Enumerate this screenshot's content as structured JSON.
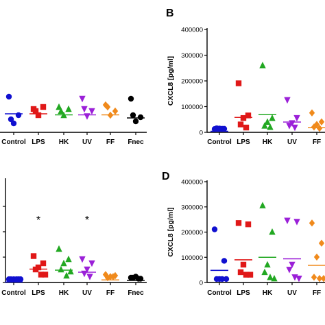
{
  "chart_data": [
    {
      "panel": "",
      "type": "scatter",
      "categories": [
        "Control",
        "LPS",
        "HK",
        "UV",
        "FF",
        "Fnec"
      ],
      "colors": [
        "#1010d0",
        "#e01818",
        "#22a822",
        "#9b20d8",
        "#f08a1c",
        "#000000"
      ],
      "markers": [
        "circle",
        "square",
        "triangle",
        "triangle-down",
        "diamond",
        "circle"
      ],
      "ylabel": "",
      "yticks": [],
      "points": [
        [
          0.32,
          0.14,
          0.06,
          0.1
        ],
        [
          0.2,
          0.22,
          0.14,
          0.18
        ],
        [
          0.22,
          0.2,
          0.14,
          0.18
        ],
        [
          0.3,
          0.18,
          0.13,
          0.2
        ],
        [
          0.24,
          0.18,
          0.14,
          0.22
        ],
        [
          0.3,
          0.12,
          0.08,
          0.14
        ]
      ],
      "means": [
        0.18,
        0.18,
        0.17,
        0.17,
        0.17,
        0.14
      ]
    },
    {
      "panel": "B",
      "type": "scatter",
      "categories": [
        "Control",
        "LPS",
        "HK",
        "UV",
        "FF"
      ],
      "colors": [
        "#1010d0",
        "#e01818",
        "#22a822",
        "#9b20d8",
        "#f08a1c"
      ],
      "markers": [
        "circle",
        "square",
        "triangle",
        "triangle-down",
        "diamond"
      ],
      "ylabel": "CXCL8 [pg/ml]",
      "ylim": [
        0,
        400000
      ],
      "yticks": [
        "0",
        "100000",
        "200000",
        "300000",
        "400000"
      ],
      "points": [
        [
          2000,
          3000,
          4000,
          5000,
          3000
        ],
        [
          180000,
          55000,
          45000,
          20000,
          8000
        ],
        [
          250000,
          45000,
          30000,
          15000,
          10000
        ],
        [
          115000,
          45000,
          25000,
          15000,
          8000
        ],
        [
          65000,
          30000,
          20000,
          10000,
          5000
        ]
      ],
      "means": [
        4000,
        58000,
        70000,
        40000,
        18000
      ]
    },
    {
      "panel": "",
      "type": "scatter",
      "categories": [
        "Control",
        "LPS",
        "HK",
        "UV",
        "FF",
        "Fnec"
      ],
      "colors": [
        "#1010d0",
        "#e01818",
        "#22a822",
        "#9b20d8",
        "#f08a1c",
        "#000000"
      ],
      "markers": [
        "circle",
        "square",
        "triangle",
        "triangle-down",
        "diamond",
        "circle"
      ],
      "ylabel": "",
      "yticks": [],
      "points": [
        [
          0.005,
          0.005,
          0.005,
          0.005,
          0.005,
          0.005
        ],
        [
          0.23,
          0.16,
          0.12,
          0.1,
          0.05,
          0.05
        ],
        [
          0.3,
          0.2,
          0.16,
          0.1,
          0.04,
          0.08
        ],
        [
          0.2,
          0.16,
          0.1,
          0.06,
          0.03
        ],
        [
          0.05,
          0.04,
          0.03,
          0.02,
          0.03
        ],
        [
          0.02,
          0.01,
          0.03,
          0.02,
          0.01
        ]
      ],
      "means": [
        0.005,
        0.13,
        0.12,
        0.1,
        0.025,
        0.02
      ],
      "annotations": [
        "*",
        "*"
      ]
    },
    {
      "panel": "D",
      "type": "scatter",
      "categories": [
        "Control",
        "LPS",
        "HK",
        "UV",
        "FF"
      ],
      "colors": [
        "#1010d0",
        "#e01818",
        "#22a822",
        "#9b20d8",
        "#f08a1c"
      ],
      "markers": [
        "circle",
        "square",
        "triangle",
        "triangle-down",
        "diamond"
      ],
      "ylabel": "CXCL8 [pg/ml]",
      "ylim": [
        0,
        400000
      ],
      "yticks": [
        "0",
        "100000",
        "200000",
        "300000",
        "400000"
      ],
      "points": [
        [
          200000,
          75000,
          3000,
          3000,
          3000,
          3000
        ],
        [
          225000,
          220000,
          60000,
          30000,
          20000,
          20000
        ],
        [
          295000,
          190000,
          60000,
          30000,
          10000,
          5000
        ],
        [
          235000,
          230000,
          60000,
          40000,
          10000,
          5000
        ],
        [
          225000,
          145000,
          90000,
          10000,
          5000,
          5000
        ]
      ],
      "means": [
        48000,
        90000,
        100000,
        94000,
        68000
      ]
    }
  ]
}
